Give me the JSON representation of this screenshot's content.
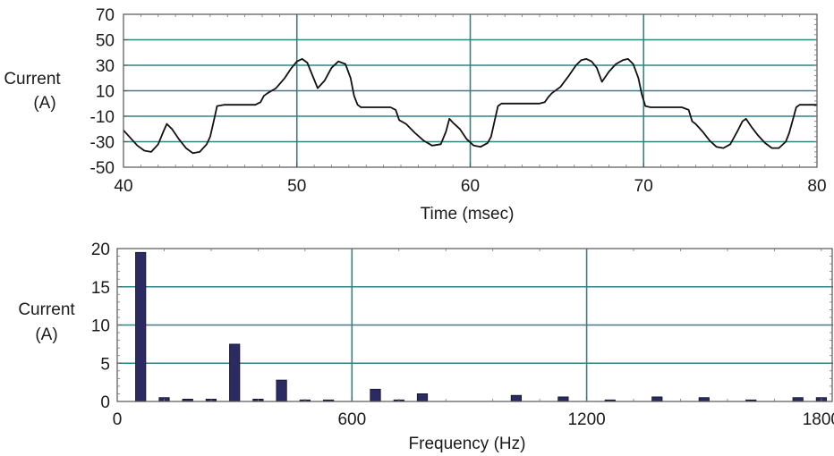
{
  "chart_data": [
    {
      "type": "line",
      "title": "",
      "xlabel": "Time (msec)",
      "ylabel_lines": [
        "Current",
        "(A)"
      ],
      "xlim": [
        40,
        80
      ],
      "ylim": [
        -50,
        70
      ],
      "x_ticks": [
        40,
        50,
        60,
        70,
        80
      ],
      "y_ticks": [
        70,
        50,
        30,
        10,
        -10,
        -30,
        -50
      ],
      "x_tick_labels": [
        "40",
        "50",
        "60",
        "70",
        "80"
      ],
      "y_tick_labels": [
        "70",
        "50",
        "30",
        "10",
        "-10",
        "-30",
        "-50"
      ],
      "grid": {
        "horizontal": [
          50,
          30,
          10,
          -10,
          -30
        ],
        "vertical": [
          50,
          60,
          70
        ]
      },
      "grid_color": "#2f8585",
      "line_color": "#111111",
      "series": [
        {
          "x": [
            40.0,
            40.4,
            40.8,
            41.2,
            41.6,
            42.0,
            42.3,
            42.5,
            42.8,
            43.2,
            43.6,
            44.0,
            44.4,
            44.8,
            45.0,
            45.2,
            45.4,
            45.8,
            46.4,
            47.0,
            47.6,
            47.9,
            48.1,
            48.3,
            48.8,
            49.3,
            49.7,
            50.0,
            50.3,
            50.6,
            50.9,
            51.2,
            51.6,
            52.0,
            52.4,
            52.8,
            53.1,
            53.3,
            53.5,
            53.7,
            54.2,
            54.8,
            55.4,
            55.7,
            55.9,
            56.3,
            56.8,
            57.3,
            57.8,
            58.3,
            58.6,
            58.8,
            59.0,
            59.4,
            59.8,
            60.2,
            60.6,
            61.0,
            61.2,
            61.4,
            61.6,
            61.8,
            62.2,
            62.8,
            63.4,
            64.0,
            64.3,
            64.5,
            64.7,
            65.2,
            65.7,
            66.1,
            66.4,
            66.7,
            67.0,
            67.3,
            67.6,
            68.0,
            68.4,
            68.8,
            69.1,
            69.4,
            69.7,
            69.9,
            70.1,
            70.4,
            71.0,
            71.6,
            72.2,
            72.6,
            72.8,
            73.0,
            73.4,
            73.8,
            74.2,
            74.6,
            75.0,
            75.4,
            75.7,
            75.9,
            76.2,
            76.6,
            77.0,
            77.4,
            77.8,
            78.2,
            78.4,
            78.6,
            78.8,
            79.0,
            79.4,
            80.0
          ],
          "y": [
            -21,
            -27,
            -33,
            -37,
            -38,
            -32,
            -22,
            -16,
            -20,
            -28,
            -35,
            -39,
            -38,
            -32,
            -26,
            -14,
            -2,
            -1,
            -1,
            -1,
            -1,
            1,
            6,
            8,
            12,
            20,
            28,
            33,
            35,
            32,
            22,
            12,
            18,
            28,
            33,
            31,
            20,
            6,
            -1,
            -3,
            -3,
            -3,
            -3,
            -5,
            -13,
            -16,
            -23,
            -29,
            -33,
            -32,
            -22,
            -12,
            -15,
            -20,
            -28,
            -33,
            -34,
            -31,
            -26,
            -14,
            -2,
            0,
            0,
            0,
            0,
            0,
            1,
            5,
            8,
            13,
            22,
            30,
            34,
            35,
            33,
            28,
            17,
            25,
            31,
            34,
            35,
            31,
            20,
            7,
            -2,
            -3,
            -3,
            -3,
            -3,
            -5,
            -14,
            -16,
            -22,
            -29,
            -34,
            -35,
            -32,
            -22,
            -14,
            -12,
            -18,
            -25,
            -31,
            -35,
            -35,
            -30,
            -23,
            -13,
            -3,
            -1,
            -1,
            -1
          ]
        }
      ]
    },
    {
      "type": "bar",
      "title": "",
      "xlabel": "Frequency (Hz)",
      "ylabel_lines": [
        "Current",
        "(A)"
      ],
      "xlim": [
        0,
        1830
      ],
      "ylim": [
        0,
        20
      ],
      "x_ticks": [
        0,
        600,
        1200,
        1800
      ],
      "y_ticks": [
        20,
        15,
        10,
        5,
        0
      ],
      "x_tick_labels": [
        "0",
        "600",
        "1200",
        "1800"
      ],
      "y_tick_labels": [
        "20",
        "15",
        "10",
        "5",
        "0"
      ],
      "grid": {
        "horizontal": [
          15,
          10,
          5
        ],
        "vertical": [
          600,
          1200
        ]
      },
      "grid_color": "#2f8585",
      "bar_color": "#2b2a62",
      "bar_width": 26,
      "x": [
        60,
        120,
        180,
        240,
        300,
        360,
        420,
        480,
        540,
        660,
        720,
        780,
        1020,
        1140,
        1260,
        1380,
        1500,
        1620,
        1740,
        1800
      ],
      "values": [
        19.5,
        0.5,
        0.3,
        0.3,
        7.5,
        0.3,
        2.8,
        0.2,
        0.2,
        1.6,
        0.2,
        1.0,
        0.8,
        0.6,
        0.2,
        0.6,
        0.5,
        0.2,
        0.5,
        0.5
      ]
    }
  ]
}
